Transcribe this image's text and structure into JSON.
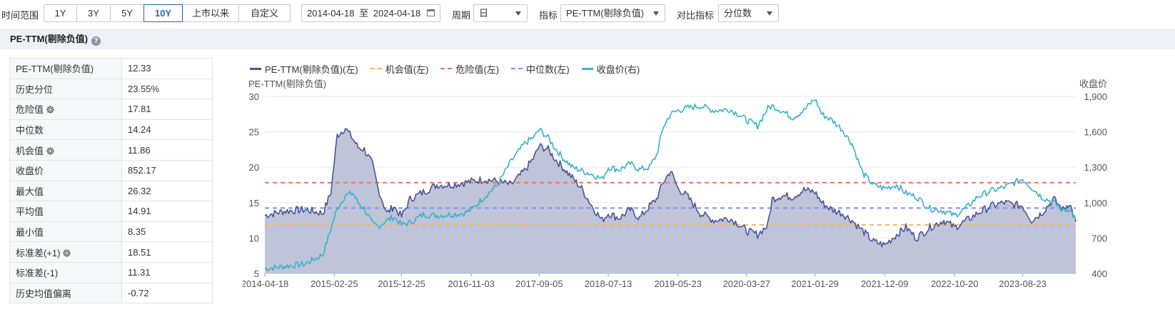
{
  "toolbar": {
    "time_range_label": "时间范围",
    "range_buttons": [
      "1Y",
      "3Y",
      "5Y",
      "10Y",
      "上市以来",
      "自定义"
    ],
    "active_range": "10Y",
    "date_from": "2014-04-18",
    "date_sep": "至",
    "date_to": "2024-04-18",
    "period_label": "周期",
    "period_value": "日",
    "indicator_label": "指标",
    "indicator_value": "PE-TTM(剔除负值)",
    "compare_label": "对比指标",
    "compare_value": "分位数"
  },
  "section": {
    "title": "PE-TTM(剔除负值)"
  },
  "stats": [
    {
      "label": "PE-TTM(剔除负值)",
      "value": "12.33",
      "gear": false
    },
    {
      "label": "历史分位",
      "value": "23.55%",
      "gear": false
    },
    {
      "label": "危险值",
      "value": "17.81",
      "gear": true
    },
    {
      "label": "中位数",
      "value": "14.24",
      "gear": false
    },
    {
      "label": "机会值",
      "value": "11.86",
      "gear": true
    },
    {
      "label": "收盘价",
      "value": "852.17",
      "gear": false
    },
    {
      "label": "最大值",
      "value": "26.32",
      "gear": false
    },
    {
      "label": "平均值",
      "value": "14.91",
      "gear": false
    },
    {
      "label": "最小值",
      "value": "8.35",
      "gear": false
    },
    {
      "label": "标准差(+1)",
      "value": "18.51",
      "gear": true
    },
    {
      "label": "标准差(-1)",
      "value": "11.31",
      "gear": false
    },
    {
      "label": "历史均值偏离",
      "value": "-0.72",
      "gear": false
    }
  ],
  "colors": {
    "pe": "#4a5597",
    "pe_fill": "#bcc1d6",
    "opportunity": "#f5b56b",
    "danger": "#f07373",
    "median": "#7f8ff3",
    "close": "#38b2c9",
    "active": "#2b60d6"
  },
  "chart_data": {
    "type": "line",
    "legend": [
      "PE-TTM(剔除负值)(左)",
      "机会值(左)",
      "危险值(左)",
      "中位数(左)",
      "收盘价(右)"
    ],
    "ylabel_left": "PE-TTM(剔除负值)",
    "ylabel_right": "收盘价",
    "ylim_left": [
      5,
      30
    ],
    "yticks_left": [
      "5",
      "10",
      "15",
      "20",
      "25",
      "30"
    ],
    "ylim_right": [
      400,
      1900
    ],
    "yticks_right": [
      "400",
      "700",
      "1,000",
      "1,300",
      "1,600",
      "1,900"
    ],
    "xlim": [
      "2014-04-18",
      "2024-04-18"
    ],
    "xticks": [
      "2014-04-18",
      "2015-02-25",
      "2015-12-25",
      "2016-11-03",
      "2017-09-05",
      "2018-07-13",
      "2019-05-23",
      "2020-03-27",
      "2021-01-29",
      "2021-12-09",
      "2022-10-20",
      "2023-08-23"
    ],
    "grid": true,
    "legend_position": "top-left",
    "reference_lines": {
      "danger": 17.81,
      "median": 14.24,
      "opportunity": 11.86
    },
    "series": [
      {
        "name": "PE-TTM(剔除负值)(左)",
        "axis": "left",
        "x": [
          "2014-04-18",
          "2014-07-15",
          "2014-10-15",
          "2015-01-05",
          "2015-02-10",
          "2015-03-10",
          "2015-04-15",
          "2015-05-20",
          "2015-06-12",
          "2015-07-10",
          "2015-08-15",
          "2015-09-10",
          "2015-10-20",
          "2015-11-20",
          "2015-12-25",
          "2016-02-01",
          "2016-04-01",
          "2016-06-01",
          "2016-08-01",
          "2016-10-01",
          "2016-11-03",
          "2017-01-01",
          "2017-03-01",
          "2017-05-01",
          "2017-07-01",
          "2017-08-15",
          "2017-09-05",
          "2017-10-15",
          "2017-11-20",
          "2017-12-20",
          "2018-02-01",
          "2018-03-15",
          "2018-05-01",
          "2018-06-15",
          "2018-07-13",
          "2018-09-01",
          "2018-10-20",
          "2018-12-01",
          "2019-01-15",
          "2019-02-15",
          "2019-03-20",
          "2019-04-20",
          "2019-05-23",
          "2019-07-01",
          "2019-09-01",
          "2019-11-01",
          "2020-01-10",
          "2020-02-20",
          "2020-03-27",
          "2020-05-15",
          "2020-07-01",
          "2020-07-20",
          "2020-09-01",
          "2020-10-20",
          "2020-12-10",
          "2021-01-29",
          "2021-03-01",
          "2021-04-15",
          "2021-06-01",
          "2021-07-15",
          "2021-09-01",
          "2021-10-20",
          "2021-12-09",
          "2022-02-01",
          "2022-03-15",
          "2022-05-01",
          "2022-07-01",
          "2022-09-01",
          "2022-10-20",
          "2022-12-15",
          "2023-02-01",
          "2023-04-01",
          "2023-06-01",
          "2023-08-23",
          "2023-10-01",
          "2023-11-15",
          "2024-01-10",
          "2024-02-20",
          "2024-03-20",
          "2024-04-18"
        ],
        "values": [
          13.2,
          13.8,
          14.0,
          13.5,
          16.5,
          24.5,
          25.5,
          24.0,
          22.8,
          22.5,
          20.5,
          17.0,
          13.5,
          14.5,
          13.0,
          15.5,
          16.5,
          17.5,
          17.5,
          17.8,
          18.0,
          18.3,
          18.0,
          17.5,
          19.5,
          21.5,
          23.0,
          22.5,
          21.0,
          20.0,
          18.5,
          17.0,
          14.5,
          12.5,
          13.5,
          12.8,
          14.0,
          12.8,
          14.5,
          15.5,
          18.0,
          19.5,
          17.0,
          16.0,
          13.5,
          12.5,
          12.8,
          12.0,
          11.0,
          10.5,
          11.8,
          15.5,
          16.0,
          15.8,
          16.8,
          16.5,
          15.0,
          14.0,
          13.5,
          12.5,
          11.0,
          9.5,
          9.0,
          10.5,
          11.5,
          10.0,
          11.5,
          12.5,
          11.5,
          12.5,
          13.5,
          14.5,
          15.0,
          14.5,
          12.5,
          13.5,
          15.5,
          14.0,
          15.0,
          12.3
        ]
      },
      {
        "name": "收盘价(右)",
        "axis": "right",
        "x": [
          "2014-04-18",
          "2014-07-15",
          "2014-10-15",
          "2015-01-05",
          "2015-02-10",
          "2015-03-10",
          "2015-04-15",
          "2015-05-20",
          "2015-06-12",
          "2015-07-10",
          "2015-08-15",
          "2015-09-10",
          "2015-10-20",
          "2015-11-20",
          "2015-12-25",
          "2016-02-01",
          "2016-04-01",
          "2016-06-01",
          "2016-08-01",
          "2016-10-01",
          "2016-11-03",
          "2017-01-01",
          "2017-03-01",
          "2017-05-01",
          "2017-07-01",
          "2017-08-15",
          "2017-09-05",
          "2017-10-15",
          "2017-11-20",
          "2017-12-20",
          "2018-02-01",
          "2018-03-15",
          "2018-05-01",
          "2018-06-15",
          "2018-07-13",
          "2018-09-01",
          "2018-10-20",
          "2018-12-01",
          "2019-01-15",
          "2019-02-15",
          "2019-03-20",
          "2019-04-20",
          "2019-05-23",
          "2019-07-01",
          "2019-09-01",
          "2019-11-01",
          "2020-01-10",
          "2020-02-20",
          "2020-03-27",
          "2020-05-15",
          "2020-07-01",
          "2020-07-20",
          "2020-09-01",
          "2020-10-20",
          "2020-12-10",
          "2021-01-29",
          "2021-03-01",
          "2021-04-15",
          "2021-06-01",
          "2021-07-15",
          "2021-09-01",
          "2021-10-20",
          "2021-12-09",
          "2022-02-01",
          "2022-03-15",
          "2022-05-01",
          "2022-07-01",
          "2022-09-01",
          "2022-10-20",
          "2022-12-15",
          "2023-02-01",
          "2023-04-01",
          "2023-06-01",
          "2023-08-23",
          "2023-10-01",
          "2023-11-15",
          "2024-01-10",
          "2024-02-20",
          "2024-03-20",
          "2024-04-18"
        ],
        "values": [
          440,
          460,
          480,
          560,
          780,
          950,
          1060,
          1080,
          1000,
          950,
          820,
          800,
          850,
          880,
          810,
          830,
          900,
          890,
          900,
          910,
          940,
          1050,
          1150,
          1350,
          1500,
          1560,
          1620,
          1550,
          1450,
          1380,
          1300,
          1270,
          1240,
          1200,
          1300,
          1280,
          1330,
          1280,
          1300,
          1400,
          1650,
          1750,
          1780,
          1800,
          1820,
          1780,
          1790,
          1750,
          1700,
          1650,
          1800,
          1820,
          1780,
          1720,
          1780,
          1880,
          1750,
          1700,
          1620,
          1500,
          1250,
          1150,
          1120,
          1150,
          1080,
          1050,
          950,
          930,
          890,
          960,
          1050,
          1100,
          1130,
          1200,
          1130,
          1050,
          1000,
          930,
          950,
          852
        ]
      }
    ]
  }
}
